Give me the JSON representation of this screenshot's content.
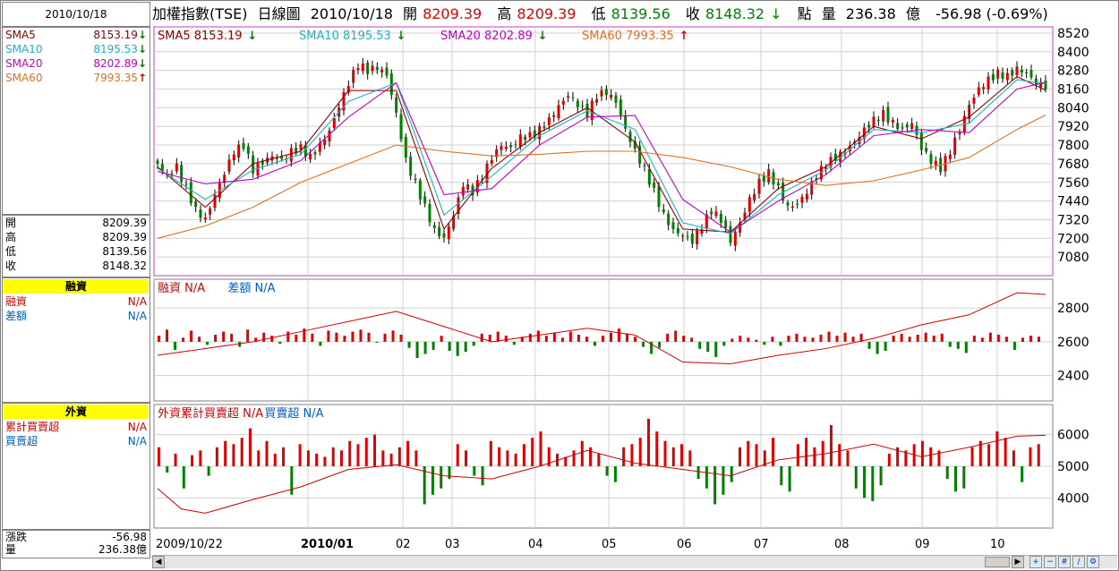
{
  "header": {
    "title": "加權指數(TSE)",
    "period": "日線圖",
    "date": "2010/10/18",
    "open_label": "開",
    "open": "8209.39",
    "high_label": "高",
    "high": "8209.39",
    "low_label": "低",
    "low": "8139.56",
    "close_label": "收",
    "close": "8148.32",
    "close_arrow": "↓",
    "point_label": "點",
    "volume_label": "量",
    "volume": "236.38",
    "volume_unit": "億",
    "change": "-56.98 (-0.69%)"
  },
  "left_panel": {
    "date": "2010/10/18",
    "sma": [
      {
        "label": "SMA5",
        "value": "8153.19",
        "arrow": "↓",
        "color": "#8b0000"
      },
      {
        "label": "SMA10",
        "value": "8195.53",
        "arrow": "↓",
        "color": "#20b0c0"
      },
      {
        "label": "SMA20",
        "value": "8202.89",
        "arrow": "↓",
        "color": "#c000c0"
      },
      {
        "label": "SMA60",
        "value": "7993.35",
        "arrow": "↑",
        "color": "#e07020"
      }
    ],
    "ohlc": [
      {
        "label": "開",
        "value": "8209.39"
      },
      {
        "label": "高",
        "value": "8209.39"
      },
      {
        "label": "低",
        "value": "8139.56"
      },
      {
        "label": "收",
        "value": "8148.32"
      }
    ],
    "margin": {
      "title": "融資",
      "rows": [
        {
          "label": "融資",
          "value": "N/A",
          "color": "#d00000"
        },
        {
          "label": "差額",
          "value": "N/A",
          "color": "#0060c0"
        }
      ]
    },
    "foreign": {
      "title": "外資",
      "rows": [
        {
          "label": "累計買賣超",
          "value": "N/A",
          "color": "#d00000"
        },
        {
          "label": "買賣超",
          "value": "N/A",
          "color": "#0060c0"
        }
      ]
    },
    "change": {
      "label": "漲跌",
      "value": "-56.98"
    },
    "volume": {
      "label": "量",
      "value": "236.38億"
    }
  },
  "chart_data": [
    {
      "type": "candlestick",
      "legend": [
        {
          "label": "SMA5 8153.19",
          "arrow": "↓",
          "color": "#8b0000"
        },
        {
          "label": "SMA10 8195.53",
          "arrow": "↓",
          "color": "#20b0c0"
        },
        {
          "label": "SMA20 8202.89",
          "arrow": "↓",
          "color": "#c000c0"
        },
        {
          "label": "SMA60 7993.35",
          "arrow": "↑",
          "color": "#e07020"
        }
      ],
      "y_ticks": [
        "8520",
        "8400",
        "8280",
        "8160",
        "8040",
        "7920",
        "7800",
        "7680",
        "7560",
        "7440",
        "7320",
        "7200",
        "7080"
      ],
      "ylim": [
        6960,
        8560
      ],
      "x_labels": [
        "2009/10/22",
        "2010/01",
        "02",
        "03",
        "04",
        "05",
        "06",
        "07",
        "08",
        "09",
        "10"
      ],
      "close_path": [
        [
          0,
          7680
        ],
        [
          4,
          7600
        ],
        [
          8,
          7660
        ],
        [
          12,
          7520
        ],
        [
          16,
          7380
        ],
        [
          20,
          7320
        ],
        [
          24,
          7480
        ],
        [
          28,
          7620
        ],
        [
          32,
          7760
        ],
        [
          36,
          7800
        ],
        [
          40,
          7640
        ],
        [
          44,
          7690
        ],
        [
          48,
          7730
        ],
        [
          52,
          7700
        ],
        [
          56,
          7760
        ],
        [
          60,
          7780
        ],
        [
          64,
          7720
        ],
        [
          68,
          7800
        ],
        [
          72,
          7890
        ],
        [
          76,
          8050
        ],
        [
          80,
          8200
        ],
        [
          84,
          8320
        ],
        [
          88,
          8280
        ],
        [
          92,
          8300
        ],
        [
          96,
          8250
        ],
        [
          100,
          8000
        ],
        [
          104,
          7700
        ],
        [
          108,
          7550
        ],
        [
          112,
          7400
        ],
        [
          116,
          7250
        ],
        [
          120,
          7200
        ],
        [
          124,
          7350
        ],
        [
          128,
          7550
        ],
        [
          132,
          7500
        ],
        [
          136,
          7600
        ],
        [
          140,
          7720
        ],
        [
          144,
          7800
        ],
        [
          148,
          7780
        ],
        [
          152,
          7850
        ],
        [
          156,
          7860
        ],
        [
          160,
          7900
        ],
        [
          164,
          7960
        ],
        [
          168,
          8050
        ],
        [
          172,
          8120
        ],
        [
          176,
          8060
        ],
        [
          180,
          8000
        ],
        [
          184,
          8120
        ],
        [
          188,
          8140
        ],
        [
          192,
          8080
        ],
        [
          196,
          7900
        ],
        [
          200,
          7760
        ],
        [
          204,
          7640
        ],
        [
          208,
          7500
        ],
        [
          212,
          7350
        ],
        [
          216,
          7250
        ],
        [
          220,
          7220
        ],
        [
          224,
          7180
        ],
        [
          228,
          7280
        ],
        [
          232,
          7380
        ],
        [
          236,
          7320
        ],
        [
          240,
          7180
        ],
        [
          244,
          7300
        ],
        [
          248,
          7450
        ],
        [
          252,
          7560
        ],
        [
          256,
          7620
        ],
        [
          260,
          7520
        ],
        [
          264,
          7400
        ],
        [
          268,
          7420
        ],
        [
          272,
          7500
        ],
        [
          276,
          7600
        ],
        [
          280,
          7680
        ],
        [
          284,
          7720
        ],
        [
          288,
          7760
        ],
        [
          292,
          7820
        ],
        [
          296,
          7900
        ],
        [
          300,
          7960
        ],
        [
          304,
          8000
        ],
        [
          308,
          7940
        ],
        [
          312,
          7900
        ],
        [
          316,
          7940
        ],
        [
          320,
          7780
        ],
        [
          324,
          7700
        ],
        [
          328,
          7650
        ],
        [
          332,
          7760
        ],
        [
          336,
          7900
        ],
        [
          340,
          8060
        ],
        [
          344,
          8160
        ],
        [
          348,
          8220
        ],
        [
          352,
          8260
        ],
        [
          356,
          8240
        ],
        [
          360,
          8290
        ],
        [
          364,
          8260
        ],
        [
          368,
          8200
        ],
        [
          372,
          8180
        ]
      ],
      "sma5": [
        [
          0,
          7660
        ],
        [
          20,
          7400
        ],
        [
          40,
          7680
        ],
        [
          60,
          7760
        ],
        [
          80,
          8150
        ],
        [
          100,
          8150
        ],
        [
          120,
          7260
        ],
        [
          140,
          7650
        ],
        [
          160,
          7880
        ],
        [
          180,
          8040
        ],
        [
          200,
          7820
        ],
        [
          220,
          7260
        ],
        [
          240,
          7240
        ],
        [
          260,
          7520
        ],
        [
          280,
          7660
        ],
        [
          300,
          7920
        ],
        [
          320,
          7840
        ],
        [
          340,
          7980
        ],
        [
          360,
          8240
        ],
        [
          372,
          8153
        ]
      ],
      "sma10": [
        [
          0,
          7650
        ],
        [
          20,
          7450
        ],
        [
          40,
          7640
        ],
        [
          60,
          7740
        ],
        [
          80,
          8080
        ],
        [
          100,
          8200
        ],
        [
          120,
          7350
        ],
        [
          140,
          7600
        ],
        [
          160,
          7860
        ],
        [
          180,
          8020
        ],
        [
          200,
          7900
        ],
        [
          220,
          7300
        ],
        [
          240,
          7230
        ],
        [
          260,
          7480
        ],
        [
          280,
          7640
        ],
        [
          300,
          7900
        ],
        [
          320,
          7880
        ],
        [
          340,
          7940
        ],
        [
          360,
          8220
        ],
        [
          372,
          8195
        ]
      ],
      "sma20": [
        [
          0,
          7630
        ],
        [
          20,
          7550
        ],
        [
          40,
          7580
        ],
        [
          60,
          7700
        ],
        [
          80,
          7980
        ],
        [
          100,
          8200
        ],
        [
          120,
          7480
        ],
        [
          140,
          7520
        ],
        [
          160,
          7800
        ],
        [
          180,
          7980
        ],
        [
          200,
          7990
        ],
        [
          220,
          7450
        ],
        [
          240,
          7240
        ],
        [
          260,
          7440
        ],
        [
          280,
          7610
        ],
        [
          300,
          7860
        ],
        [
          320,
          7900
        ],
        [
          340,
          7880
        ],
        [
          360,
          8160
        ],
        [
          372,
          8203
        ]
      ],
      "sma60": [
        [
          0,
          7200
        ],
        [
          20,
          7280
        ],
        [
          40,
          7400
        ],
        [
          60,
          7560
        ],
        [
          80,
          7680
        ],
        [
          100,
          7800
        ],
        [
          120,
          7760
        ],
        [
          140,
          7730
        ],
        [
          160,
          7740
        ],
        [
          180,
          7760
        ],
        [
          200,
          7760
        ],
        [
          220,
          7720
        ],
        [
          240,
          7660
        ],
        [
          260,
          7580
        ],
        [
          280,
          7540
        ],
        [
          300,
          7570
        ],
        [
          320,
          7640
        ],
        [
          340,
          7720
        ],
        [
          360,
          7900
        ],
        [
          372,
          7993
        ]
      ]
    },
    {
      "type": "bar",
      "legend": [
        {
          "label": "融資",
          "value": "N/A",
          "color": "#d00000"
        },
        {
          "label": "差額",
          "value": "N/A",
          "color": "#0060c0"
        }
      ],
      "y_ticks": [
        "2800",
        "2600",
        "2400"
      ],
      "ylim": [
        2250,
        2970
      ],
      "bars": [
        30,
        60,
        -40,
        20,
        55,
        25,
        -15,
        35,
        50,
        40,
        -25,
        60,
        20,
        45,
        30,
        -10,
        50,
        35,
        65,
        40,
        -20,
        55,
        45,
        30,
        50,
        60,
        45,
        -5,
        40,
        55,
        35,
        -30,
        -80,
        -60,
        -40,
        30,
        -45,
        -70,
        -50,
        -20,
        40,
        35,
        50,
        30,
        -15,
        25,
        40,
        55,
        30,
        45,
        20,
        50,
        35,
        25,
        -20,
        30,
        45,
        65,
        40,
        25,
        -25,
        -60,
        -30,
        40,
        55,
        30,
        20,
        -35,
        -50,
        -75,
        -20,
        15,
        30,
        20,
        10,
        -15,
        25,
        -20,
        30,
        40,
        25,
        20,
        35,
        50,
        30,
        45,
        25,
        40,
        -35,
        -60,
        -45,
        30,
        40,
        25,
        35,
        45,
        30,
        40,
        -25,
        -35,
        -55,
        30,
        20,
        45,
        35,
        25,
        -40,
        20,
        30,
        25
      ],
      "line": [
        [
          0,
          2520
        ],
        [
          20,
          2560
        ],
        [
          40,
          2600
        ],
        [
          60,
          2660
        ],
        [
          80,
          2720
        ],
        [
          100,
          2780
        ],
        [
          120,
          2690
        ],
        [
          140,
          2600
        ],
        [
          160,
          2640
        ],
        [
          180,
          2680
        ],
        [
          200,
          2640
        ],
        [
          220,
          2480
        ],
        [
          240,
          2470
        ],
        [
          260,
          2520
        ],
        [
          280,
          2560
        ],
        [
          300,
          2620
        ],
        [
          320,
          2700
        ],
        [
          340,
          2760
        ],
        [
          360,
          2890
        ],
        [
          372,
          2880
        ]
      ]
    },
    {
      "type": "bar",
      "legend": [
        {
          "label": "外資累計買賣超",
          "value": "N/A",
          "color": "#d00000"
        },
        {
          "label": "買賣超",
          "value": "N/A",
          "color": "#0060c0"
        }
      ],
      "y_ticks": [
        "6000",
        "5000",
        "4000"
      ],
      "ylim": [
        3050,
        6950
      ],
      "bars": [
        600,
        -200,
        400,
        -700,
        350,
        500,
        -300,
        600,
        800,
        700,
        900,
        1200,
        500,
        800,
        400,
        600,
        -900,
        700,
        500,
        400,
        300,
        600,
        500,
        800,
        700,
        900,
        1000,
        500,
        400,
        600,
        800,
        500,
        -1200,
        -900,
        -700,
        -400,
        700,
        500,
        -300,
        -600,
        800,
        600,
        500,
        400,
        700,
        900,
        1100,
        600,
        400,
        300,
        500,
        800,
        600,
        400,
        -300,
        -500,
        600,
        700,
        900,
        1500,
        1100,
        800,
        600,
        700,
        500,
        -400,
        -700,
        -1200,
        -900,
        -500,
        600,
        800,
        700,
        500,
        900,
        -600,
        -800,
        700,
        900,
        600,
        800,
        1300,
        700,
        500,
        -700,
        -1000,
        -1100,
        -600,
        400,
        600,
        500,
        700,
        800,
        600,
        500,
        -400,
        -800,
        -700,
        600,
        800,
        700,
        1100,
        900,
        500,
        -500,
        600,
        700
      ],
      "line": [
        [
          0,
          4300
        ],
        [
          10,
          3650
        ],
        [
          20,
          3520
        ],
        [
          40,
          3950
        ],
        [
          60,
          4350
        ],
        [
          80,
          4900
        ],
        [
          100,
          5050
        ],
        [
          120,
          4700
        ],
        [
          140,
          4600
        ],
        [
          160,
          5000
        ],
        [
          180,
          5500
        ],
        [
          200,
          5100
        ],
        [
          220,
          4900
        ],
        [
          240,
          4700
        ],
        [
          260,
          5200
        ],
        [
          280,
          5400
        ],
        [
          300,
          5700
        ],
        [
          320,
          5300
        ],
        [
          340,
          5600
        ],
        [
          360,
          5950
        ],
        [
          372,
          5980
        ]
      ]
    }
  ]
}
